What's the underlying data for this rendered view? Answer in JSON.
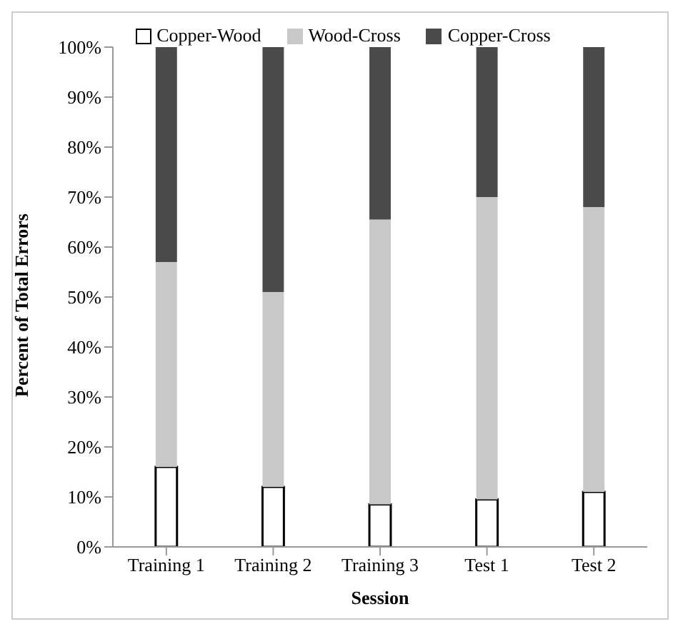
{
  "chart_data": {
    "type": "bar",
    "stacked": true,
    "xlabel": "Session",
    "ylabel": "Percent of Total Errors",
    "categories": [
      "Training 1",
      "Training 2",
      "Training 3",
      "Test 1",
      "Test 2"
    ],
    "series": [
      {
        "name": "Copper-Wood",
        "color": "#ffffff",
        "values": [
          16,
          12,
          8.5,
          9.5,
          11
        ]
      },
      {
        "name": "Wood-Cross",
        "color": "#c8c8c8",
        "values": [
          41,
          39,
          57,
          60.5,
          57
        ]
      },
      {
        "name": "Copper-Cross",
        "color": "#4a4a4a",
        "values": [
          43,
          49,
          34.5,
          30,
          32
        ]
      }
    ],
    "ylim": [
      0,
      100
    ],
    "yticks": [
      {
        "value": 0,
        "label": "0%"
      },
      {
        "value": 10,
        "label": "10%"
      },
      {
        "value": 20,
        "label": "20%"
      },
      {
        "value": 30,
        "label": "30%"
      },
      {
        "value": 40,
        "label": "40%"
      },
      {
        "value": 50,
        "label": "50%"
      },
      {
        "value": 60,
        "label": "60%"
      },
      {
        "value": 70,
        "label": "70%"
      },
      {
        "value": 80,
        "label": "80%"
      },
      {
        "value": 90,
        "label": "90%"
      },
      {
        "value": 100,
        "label": "100%"
      }
    ],
    "grid": false,
    "legend": "top"
  }
}
